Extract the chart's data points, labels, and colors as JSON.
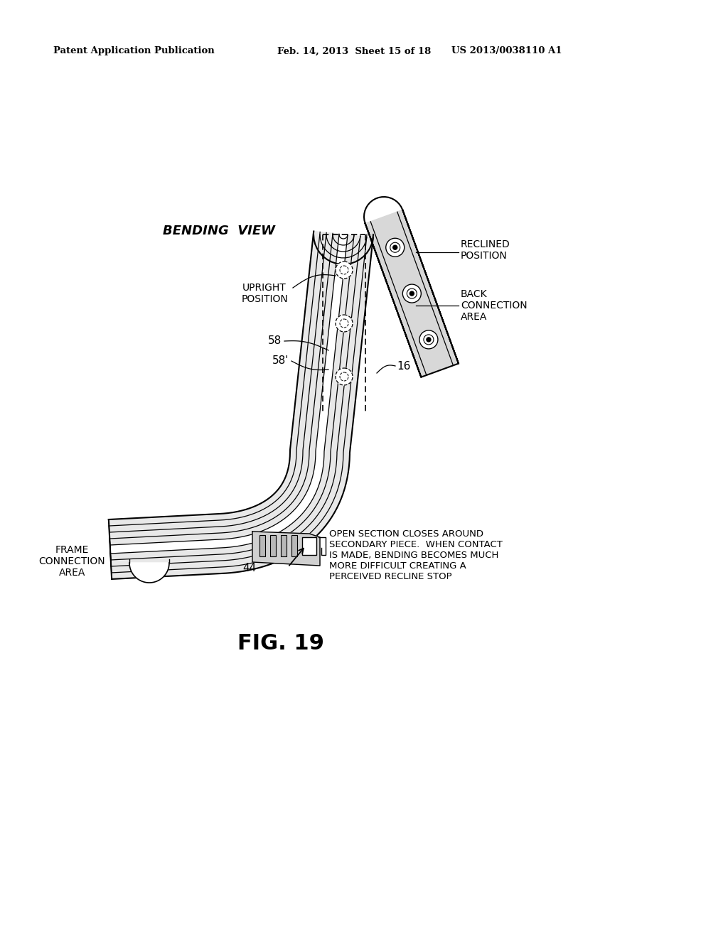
{
  "background_color": "#ffffff",
  "header_left": "Patent Application Publication",
  "header_mid": "Feb. 14, 2013  Sheet 15 of 18",
  "header_right": "US 2013/0038110 A1",
  "figure_label": "FIG. 19",
  "diagram_title": "BENDING  VIEW",
  "label_upright": "UPRIGHT\nPOSITION",
  "label_reclined": "RECLINED\nPOSITION",
  "label_back_conn": "BACK\nCONNECTION\nAREA",
  "label_frame_conn": "FRAME\nCONNECTION\nAREA",
  "label_open_section": "OPEN SECTION CLOSES AROUND\nSECONDARY PIECE.  WHEN CONTACT\nIS MADE, BENDING BECOMES MUCH\nMORE DIFFICULT CREATING A\nPERCEIVED RECLINE STOP",
  "line_color": "#000000",
  "gray_light": "#e0e0e0",
  "gray_mid": "#c0c0c0",
  "gray_dark": "#909090"
}
